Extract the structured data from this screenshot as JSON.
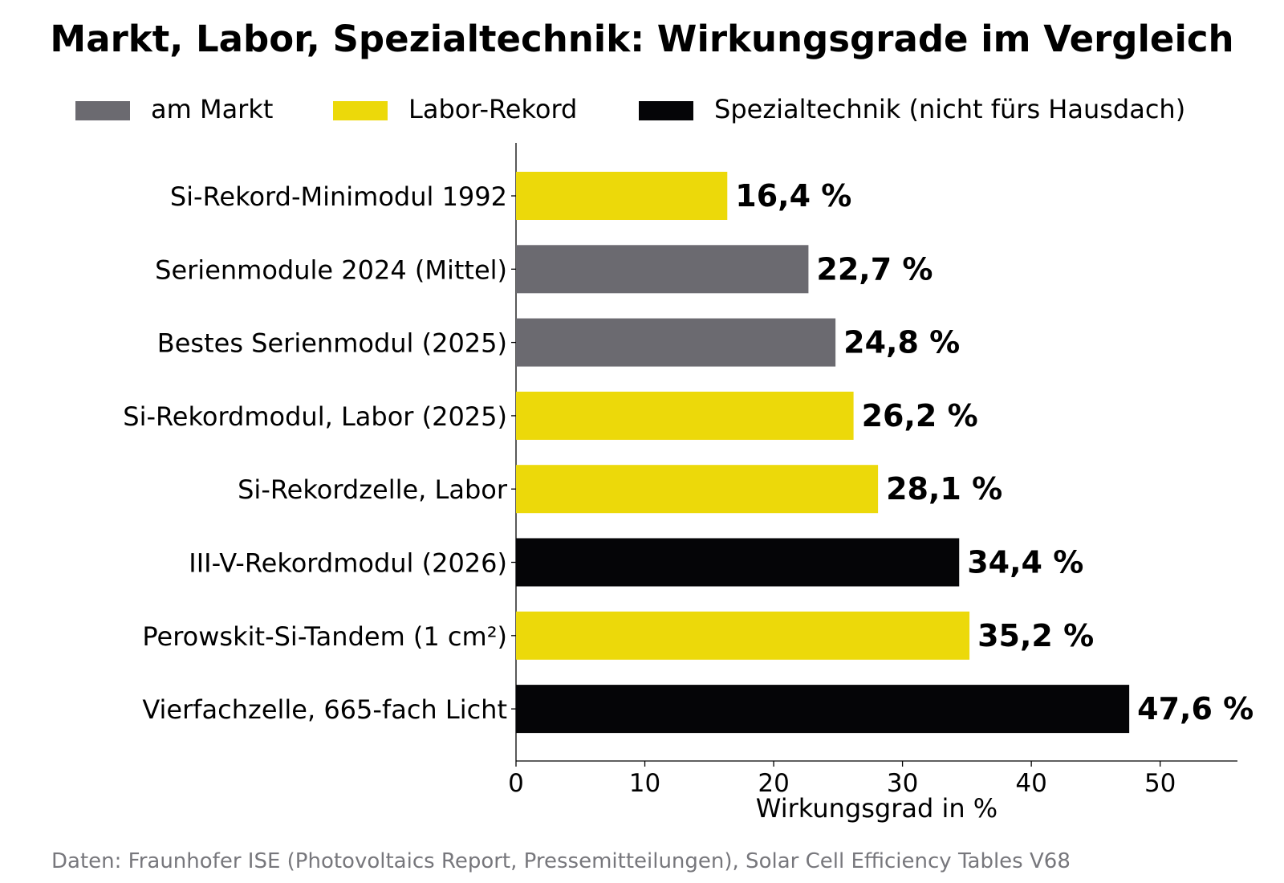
{
  "title": "Markt, Labor, Spezialtechnik: Wirkungsgrade im Vergleich",
  "legend": [
    {
      "label": "am Markt",
      "color": "#6b6a70"
    },
    {
      "label": "Labor-Rekord",
      "color": "#ecd90a"
    },
    {
      "label": "Spezialtechnik (nicht fürs Hausdach)",
      "color": "#050507"
    }
  ],
  "source": "Daten: Fraunhofer ISE (Photovoltaics Report, Pressemitteilungen), Solar Cell Efficiency Tables V68",
  "chart_data": {
    "type": "bar",
    "orientation": "horizontal",
    "title": "Markt, Labor, Spezialtechnik: Wirkungsgrade im Vergleich",
    "xlabel": "Wirkungsgrad in %",
    "ylabel": "",
    "xlim": [
      0,
      56
    ],
    "xticks": [
      0,
      10,
      20,
      30,
      40,
      50
    ],
    "grid": false,
    "legend_position": "top",
    "categories": [
      "Si-Rekord-Minimodul 1992",
      "Serienmodule 2024 (Mittel)",
      "Bestes Serienmodul (2025)",
      "Si-Rekordmodul, Labor (2025)",
      "Si-Rekordzelle, Labor",
      "III-V-Rekordmodul (2026)",
      "Perowskit-Si-Tandem (1 cm²)",
      "Vierfachzelle, 665-fach Licht"
    ],
    "values": [
      16.4,
      22.7,
      24.8,
      26.2,
      28.1,
      34.4,
      35.2,
      47.6
    ],
    "value_labels": [
      "16,4 %",
      "22,7 %",
      "24,8 %",
      "26,2 %",
      "28,1 %",
      "34,4 %",
      "35,2 %",
      "47,6 %"
    ],
    "groups": [
      "Labor-Rekord",
      "am Markt",
      "am Markt",
      "Labor-Rekord",
      "Labor-Rekord",
      "Spezialtechnik (nicht fürs Hausdach)",
      "Labor-Rekord",
      "Spezialtechnik (nicht fürs Hausdach)"
    ]
  }
}
